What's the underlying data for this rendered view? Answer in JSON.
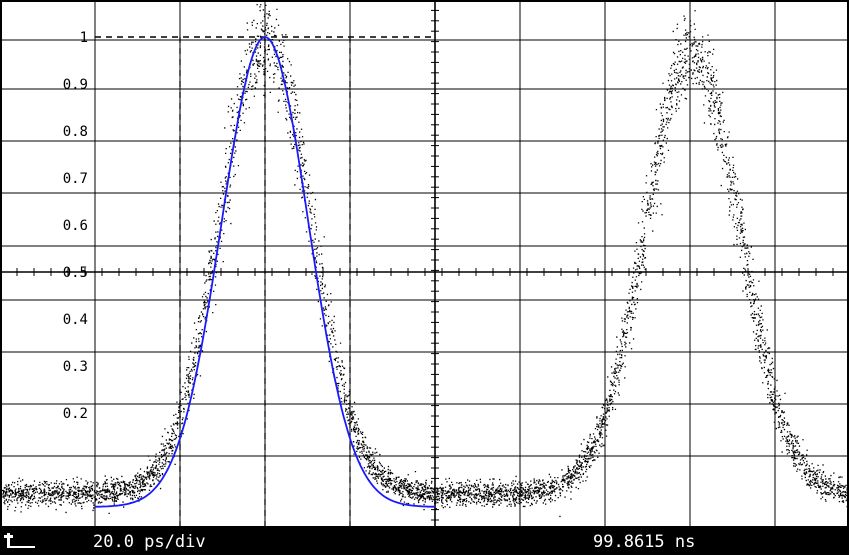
{
  "chart_data": {
    "type": "scatter",
    "title": "",
    "xlabel": "",
    "ylabel": "",
    "x_unit": "ps",
    "time_per_division_ps": 20.0,
    "x_range_ps": [
      -80,
      120
    ],
    "ylim": [
      -0.05,
      1.0
    ],
    "ytick_labels": [
      "1",
      "0.9",
      "0.8",
      "0.7",
      "0.6",
      "0.5",
      "0.4",
      "0.3",
      "0.2"
    ],
    "ytick_values": [
      1.0,
      0.9,
      0.8,
      0.7,
      0.6,
      0.5,
      0.4,
      0.3,
      0.2
    ],
    "grid": true,
    "pulses": [
      {
        "center_ps": 0,
        "fwhm_ps": 25,
        "peak": 1.0,
        "baseline": 0.03
      },
      {
        "center_ps": 100,
        "fwhm_ps": 26,
        "peak": 0.97,
        "baseline": 0.03
      }
    ],
    "fit_curve": {
      "type": "line",
      "color": "#1a1aff",
      "x_range_ps": [
        -40,
        40
      ],
      "center_ps": 0,
      "fwhm_ps": 24,
      "peak": 1.0
    },
    "reference_lines": {
      "horizontal_y": 1.0,
      "vertical_x_ps": [
        -20,
        0,
        20
      ],
      "horizontal_x_range_ps": [
        -40,
        40
      ]
    },
    "colors": {
      "background": "#ffffff",
      "grid": "#000000",
      "samples": "#000000",
      "fit": "#1a1aff",
      "statusbar": "#000000",
      "statusbar_text": "#ffffff"
    }
  },
  "statusbar": {
    "timebase": "20.0 ps/div",
    "position": "99.8615 ns"
  }
}
